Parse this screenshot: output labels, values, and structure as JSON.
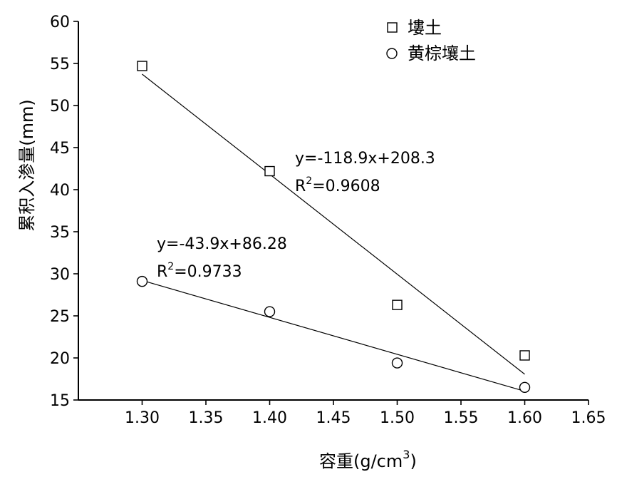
{
  "chart_data": {
    "type": "scatter",
    "xlabel_main": "容重(g/cm",
    "xlabel_sup": "3",
    "xlabel_close": ")",
    "ylabel": "累积入渗量(mm)",
    "xlim": [
      1.25,
      1.65
    ],
    "ylim": [
      15,
      60
    ],
    "x_ticks": [
      1.3,
      1.35,
      1.4,
      1.45,
      1.5,
      1.55,
      1.6,
      1.65
    ],
    "x_tick_labels": [
      "1.30",
      "1.35",
      "1.40",
      "1.45",
      "1.50",
      "1.55",
      "1.60",
      "1.65"
    ],
    "y_ticks": [
      15,
      20,
      25,
      30,
      35,
      40,
      45,
      50,
      55,
      60
    ],
    "y_tick_labels": [
      "15",
      "20",
      "25",
      "30",
      "35",
      "40",
      "45",
      "50",
      "55",
      "60"
    ],
    "legend_position": "top-right",
    "series": [
      {
        "name": "塿土",
        "marker": "square",
        "x": [
          1.3,
          1.4,
          1.5,
          1.6
        ],
        "y": [
          54.7,
          42.2,
          26.3,
          20.3
        ],
        "fit": {
          "slope": -118.9,
          "intercept": 208.3,
          "x_range": [
            1.3,
            1.6
          ]
        },
        "equation": "y=-118.9x+208.3",
        "r2_prefix": "R",
        "r2_sup": "2",
        "r2_value": "=0.9608"
      },
      {
        "name": "黄棕壤土",
        "marker": "circle",
        "x": [
          1.3,
          1.4,
          1.5,
          1.6
        ],
        "y": [
          29.1,
          25.5,
          19.4,
          16.5
        ],
        "fit": {
          "slope": -43.9,
          "intercept": 86.28,
          "x_range": [
            1.3,
            1.6
          ]
        },
        "equation": "y=-43.9x+86.28",
        "r2_prefix": "R",
        "r2_sup": "2",
        "r2_value": "=0.9733"
      }
    ]
  }
}
